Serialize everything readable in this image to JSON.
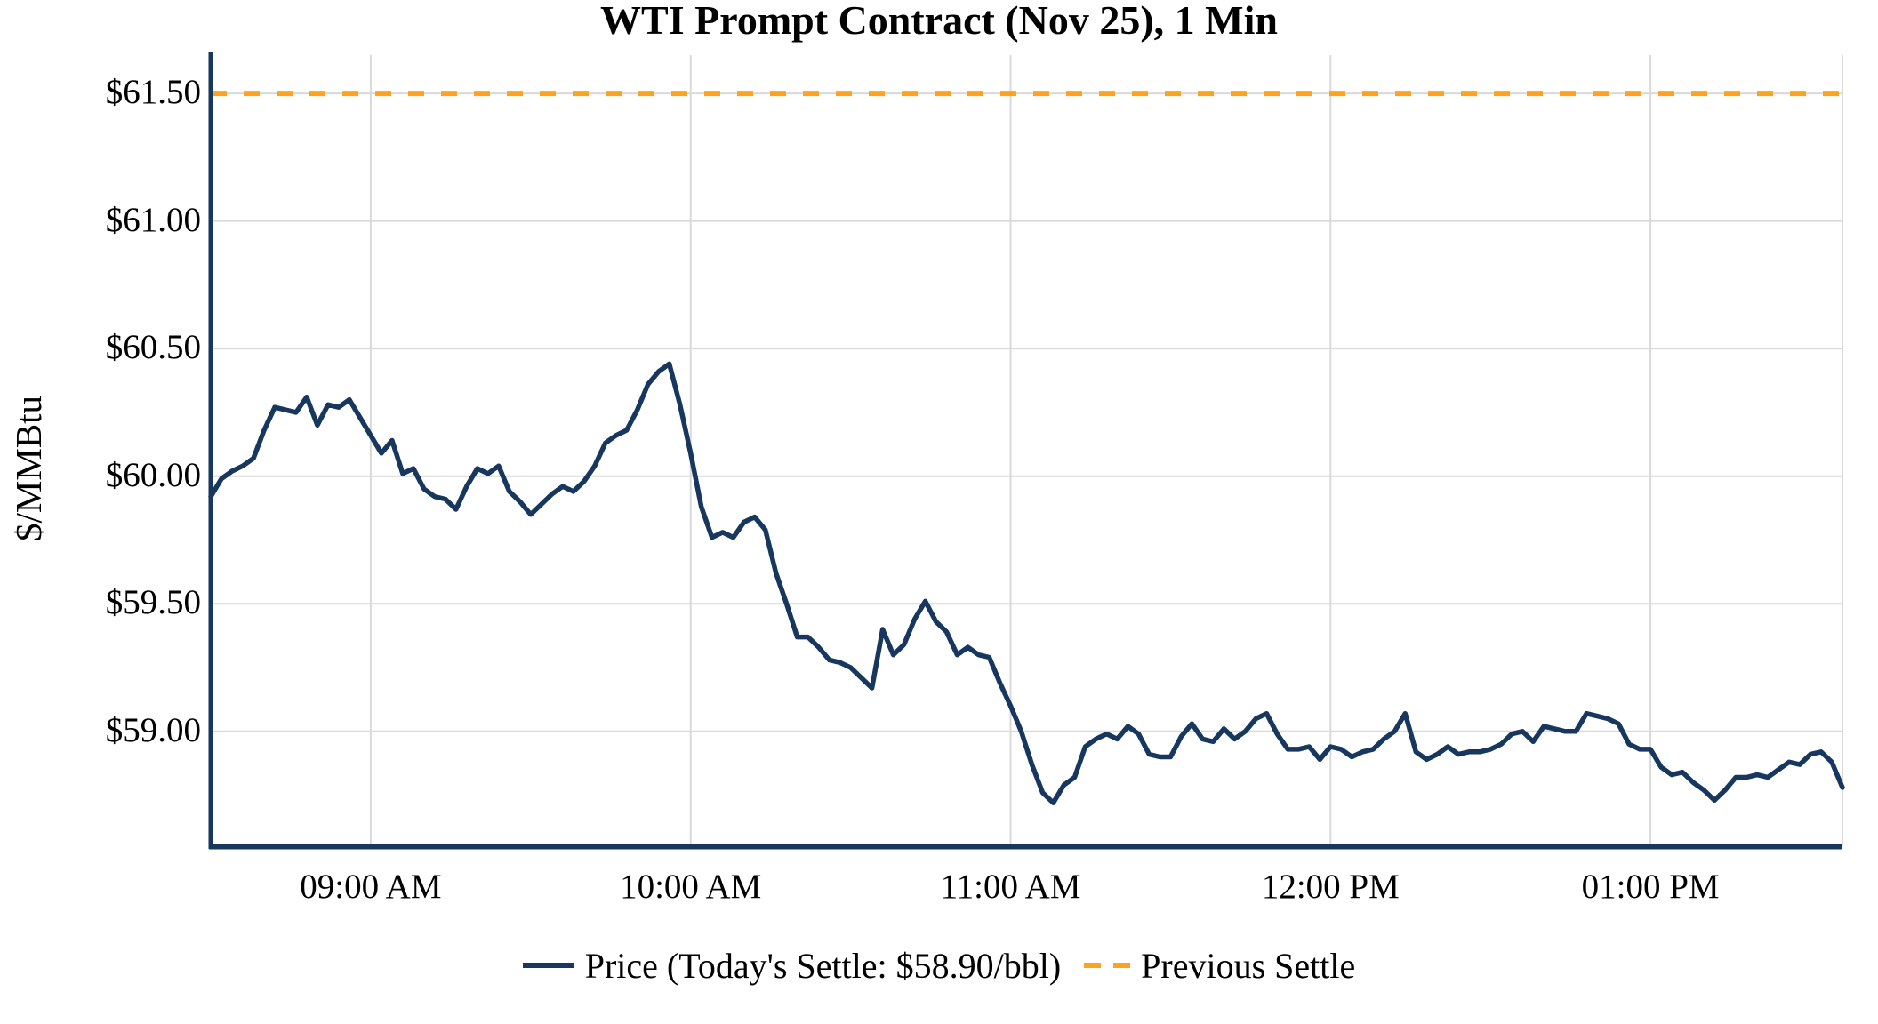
{
  "figure": {
    "title": "WTI Prompt Contract (Nov 25), 1 Min"
  },
  "chart_data": {
    "type": "line",
    "title": "WTI Prompt Contract (Nov 25), 1 Min",
    "xlabel": "",
    "ylabel": "$/MMBtu",
    "grid": true,
    "ylim": [
      58.55,
      61.65
    ],
    "xlim": [
      "08:30",
      "13:36"
    ],
    "y_ticks": [
      {
        "value": 61.5,
        "label": "$61.50"
      },
      {
        "value": 61.0,
        "label": "$61.00"
      },
      {
        "value": 60.5,
        "label": "$60.50"
      },
      {
        "value": 60.0,
        "label": "$60.00"
      },
      {
        "value": 59.5,
        "label": "$59.50"
      },
      {
        "value": 59.0,
        "label": "$59.00"
      }
    ],
    "x_ticks": [
      {
        "time": "09:00",
        "label": "09:00 AM"
      },
      {
        "time": "10:00",
        "label": "10:00 AM"
      },
      {
        "time": "11:00",
        "label": "11:00 AM"
      },
      {
        "time": "12:00",
        "label": "12:00 PM"
      },
      {
        "time": "13:00",
        "label": "01:00 PM"
      }
    ],
    "previous_settle_value": 61.5,
    "todays_settle_text": "$58.90/bbl",
    "colors": {
      "price_line": "#17375E",
      "previous_settle_line": "#FFA21D",
      "grid": "#D9D9D9",
      "axis": "#17375E"
    },
    "legend": {
      "position": "bottom",
      "entries": [
        {
          "label": "Price (Today's Settle: $58.90/bbl)",
          "style": "solid",
          "color": "#17375E"
        },
        {
          "label": "Previous Settle",
          "style": "dashed",
          "color": "#FFA21D"
        }
      ]
    },
    "series": [
      {
        "name": "Price",
        "color": "#17375E",
        "times": [
          "08:30",
          "08:32",
          "08:34",
          "08:36",
          "08:38",
          "08:40",
          "08:42",
          "08:44",
          "08:46",
          "08:48",
          "08:50",
          "08:52",
          "08:54",
          "08:56",
          "08:58",
          "09:00",
          "09:02",
          "09:04",
          "09:06",
          "09:08",
          "09:10",
          "09:12",
          "09:14",
          "09:16",
          "09:18",
          "09:20",
          "09:22",
          "09:24",
          "09:26",
          "09:28",
          "09:30",
          "09:32",
          "09:34",
          "09:36",
          "09:38",
          "09:40",
          "09:42",
          "09:44",
          "09:46",
          "09:48",
          "09:50",
          "09:52",
          "09:54",
          "09:56",
          "09:58",
          "10:00",
          "10:02",
          "10:04",
          "10:06",
          "10:08",
          "10:10",
          "10:12",
          "10:14",
          "10:16",
          "10:18",
          "10:20",
          "10:22",
          "10:24",
          "10:26",
          "10:28",
          "10:30",
          "10:32",
          "10:34",
          "10:36",
          "10:38",
          "10:40",
          "10:42",
          "10:44",
          "10:46",
          "10:48",
          "10:50",
          "10:52",
          "10:54",
          "10:56",
          "10:58",
          "11:00",
          "11:02",
          "11:04",
          "11:06",
          "11:08",
          "11:10",
          "11:12",
          "11:14",
          "11:16",
          "11:18",
          "11:20",
          "11:22",
          "11:24",
          "11:26",
          "11:28",
          "11:30",
          "11:32",
          "11:34",
          "11:36",
          "11:38",
          "11:40",
          "11:42",
          "11:44",
          "11:46",
          "11:48",
          "11:50",
          "11:52",
          "11:54",
          "11:56",
          "11:58",
          "12:00",
          "12:02",
          "12:04",
          "12:06",
          "12:08",
          "12:10",
          "12:12",
          "12:14",
          "12:16",
          "12:18",
          "12:20",
          "12:22",
          "12:24",
          "12:26",
          "12:28",
          "12:30",
          "12:32",
          "12:34",
          "12:36",
          "12:38",
          "12:40",
          "12:42",
          "12:44",
          "12:46",
          "12:48",
          "12:50",
          "12:52",
          "12:54",
          "12:56",
          "12:58",
          "13:00",
          "13:02",
          "13:04",
          "13:06",
          "13:08",
          "13:10",
          "13:12",
          "13:14",
          "13:16",
          "13:18",
          "13:20",
          "13:22",
          "13:24",
          "13:26",
          "13:28",
          "13:30",
          "13:32",
          "13:34",
          "13:36"
        ],
        "values": [
          59.92,
          59.99,
          60.02,
          60.04,
          60.07,
          60.18,
          60.27,
          60.26,
          60.25,
          60.31,
          60.2,
          60.28,
          60.27,
          60.3,
          60.23,
          60.16,
          60.09,
          60.14,
          60.01,
          60.03,
          59.95,
          59.92,
          59.91,
          59.87,
          59.96,
          60.03,
          60.01,
          60.04,
          59.94,
          59.9,
          59.85,
          59.89,
          59.93,
          59.96,
          59.94,
          59.98,
          60.04,
          60.13,
          60.16,
          60.18,
          60.26,
          60.36,
          60.41,
          60.44,
          60.28,
          60.09,
          59.88,
          59.76,
          59.78,
          59.76,
          59.82,
          59.84,
          59.79,
          59.62,
          59.5,
          59.37,
          59.37,
          59.33,
          59.28,
          59.27,
          59.25,
          59.21,
          59.17,
          59.4,
          59.3,
          59.34,
          59.44,
          59.51,
          59.43,
          59.39,
          59.3,
          59.33,
          59.3,
          59.29,
          59.19,
          59.1,
          59.0,
          58.87,
          58.76,
          58.72,
          58.79,
          58.82,
          58.94,
          58.97,
          58.99,
          58.97,
          59.02,
          58.99,
          58.91,
          58.9,
          58.9,
          58.98,
          59.03,
          58.97,
          58.96,
          59.01,
          58.97,
          59.0,
          59.05,
          59.07,
          58.99,
          58.93,
          58.93,
          58.94,
          58.89,
          58.94,
          58.93,
          58.9,
          58.92,
          58.93,
          58.97,
          59.0,
          59.07,
          58.92,
          58.89,
          58.91,
          58.94,
          58.91,
          58.92,
          58.92,
          58.93,
          58.95,
          58.99,
          59.0,
          58.96,
          59.02,
          59.01,
          59.0,
          59.0,
          59.07,
          59.06,
          59.05,
          59.03,
          58.95,
          58.93,
          58.93,
          58.86,
          58.83,
          58.84,
          58.8,
          58.77,
          58.73,
          58.77,
          58.82,
          58.82,
          58.83,
          58.82,
          58.85,
          58.88,
          58.87,
          58.91,
          58.92,
          58.88,
          58.78
        ]
      }
    ]
  }
}
